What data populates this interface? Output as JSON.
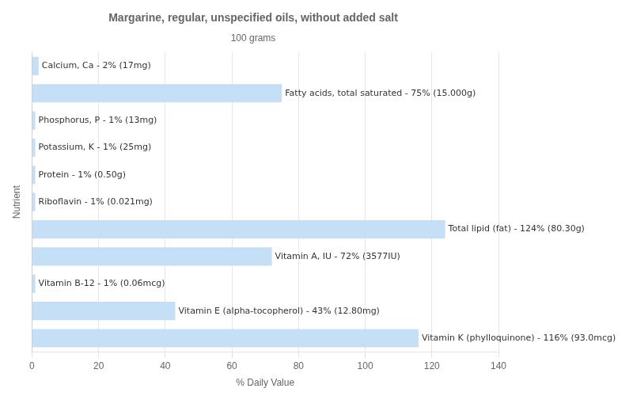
{
  "chart_data": {
    "type": "bar",
    "orientation": "horizontal",
    "title": "Margarine, regular, unspecified oils, without added salt",
    "subtitle": "100 grams",
    "xlabel": "% Daily Value",
    "ylabel": "Nutrient",
    "categories": [
      null,
      null,
      null,
      null,
      null,
      null,
      null,
      null,
      null,
      null,
      null
    ],
    "values": [
      2,
      75,
      1,
      1,
      1,
      1,
      124,
      72,
      1,
      43,
      116
    ],
    "value_labels": [
      "Calcium, Ca - 2% (17mg)",
      "Fatty acids, total saturated - 75% (15.000g)",
      "Phosphorus, P - 1% (13mg)",
      "Potassium, K - 1% (25mg)",
      "Protein - 1% (0.50g)",
      "Riboflavin - 1% (0.021mg)",
      "Total lipid (fat) - 124% (80.30g)",
      "Vitamin A, IU - 72% (3577IU)",
      "Vitamin B-12 - 1% (0.06mcg)",
      "Vitamin E (alpha-tocopherol) - 43% (12.80mg)",
      "Vitamin K (phylloquinone) - 116% (93.0mcg)"
    ],
    "data_labels": true,
    "color": "#c5dff7",
    "xlim": [
      0,
      140
    ],
    "xticks": [
      0,
      20,
      40,
      60,
      80,
      100,
      120,
      140
    ],
    "grid": true,
    "tick_labels": "x"
  }
}
